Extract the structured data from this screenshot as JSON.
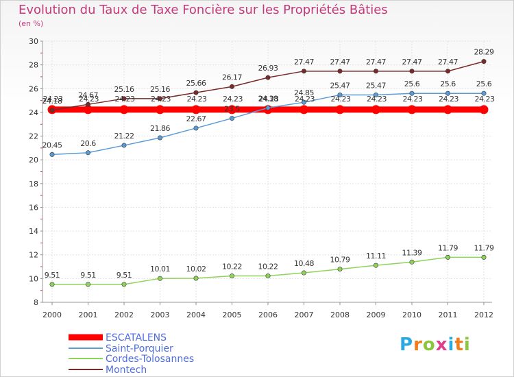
{
  "title": "Evolution du Taux de Taxe Foncière sur les Propriétés Bâties",
  "subtitle": "(en %)",
  "logo": {
    "text": "Proxiti",
    "letters": [
      "P",
      "r",
      "o",
      "x",
      "i",
      "t",
      "i"
    ],
    "colors": [
      "#2aa9e0",
      "#f07d1a",
      "#8cc63f",
      "#e23c8c",
      "#2aa9e0",
      "#f07d1a",
      "#8cc63f"
    ]
  },
  "chart_data": {
    "type": "line",
    "title": "Evolution du Taux de Taxe Foncière sur les Propriétés Bâties",
    "ylabel": "(en %)",
    "xlabel": "",
    "x": [
      "2000",
      "2001",
      "2002",
      "2003",
      "2004",
      "2005",
      "2006",
      "2007",
      "2008",
      "2009",
      "2010",
      "2011",
      "2012"
    ],
    "ylim": [
      8,
      30
    ],
    "yticks": [
      8,
      10,
      12,
      14,
      16,
      18,
      20,
      22,
      24,
      26,
      28,
      30
    ],
    "grid": true,
    "legend_position": "bottom-left",
    "series": [
      {
        "name": "ESCATALENS",
        "color": "#ff0000",
        "values": [
          24.23,
          24.23,
          24.23,
          24.23,
          24.23,
          24.23,
          24.23,
          24.23,
          24.23,
          24.23,
          24.23,
          24.23,
          24.23
        ],
        "labels": [
          "24.23",
          "24.23",
          "24.23",
          "24.23",
          "24.23",
          "24.23",
          "24.23",
          "24.23",
          "24.23",
          "24.23",
          "24.23",
          "24.23",
          "24.23"
        ]
      },
      {
        "name": "Saint-Porquier",
        "color": "#5b9bd5",
        "values": [
          20.45,
          20.6,
          21.22,
          21.86,
          22.67,
          23.5,
          24.38,
          24.85,
          25.47,
          25.47,
          25.6,
          25.6,
          25.6
        ],
        "labels": [
          "20.45",
          "20.6",
          "21.22",
          "21.86",
          "22.67",
          "23.5",
          "24.38",
          "24.85",
          "25.47",
          "25.47",
          "25.6",
          "25.6",
          "25.6"
        ]
      },
      {
        "name": "Cordes-Tolosannes",
        "color": "#8ed35a",
        "values": [
          9.51,
          9.51,
          9.51,
          10.01,
          10.02,
          10.22,
          10.22,
          10.48,
          10.79,
          11.11,
          11.39,
          11.79,
          11.79
        ],
        "labels": [
          "9.51",
          "9.51",
          "9.51",
          "10.01",
          "10.02",
          "10.22",
          "10.22",
          "10.48",
          "10.79",
          "11.11",
          "11.39",
          "11.79",
          "11.79"
        ]
      },
      {
        "name": "Montech",
        "color": "#7a2a2a",
        "values": [
          24.18,
          24.67,
          25.16,
          25.16,
          25.66,
          26.17,
          26.93,
          27.47,
          27.47,
          27.47,
          27.47,
          27.47,
          28.29
        ],
        "labels": [
          "24.18",
          "24.67",
          "25.16",
          "25.16",
          "25.66",
          "26.17",
          "26.93",
          "27.47",
          "27.47",
          "27.47",
          "27.47",
          "27.47",
          "28.29"
        ]
      }
    ]
  }
}
